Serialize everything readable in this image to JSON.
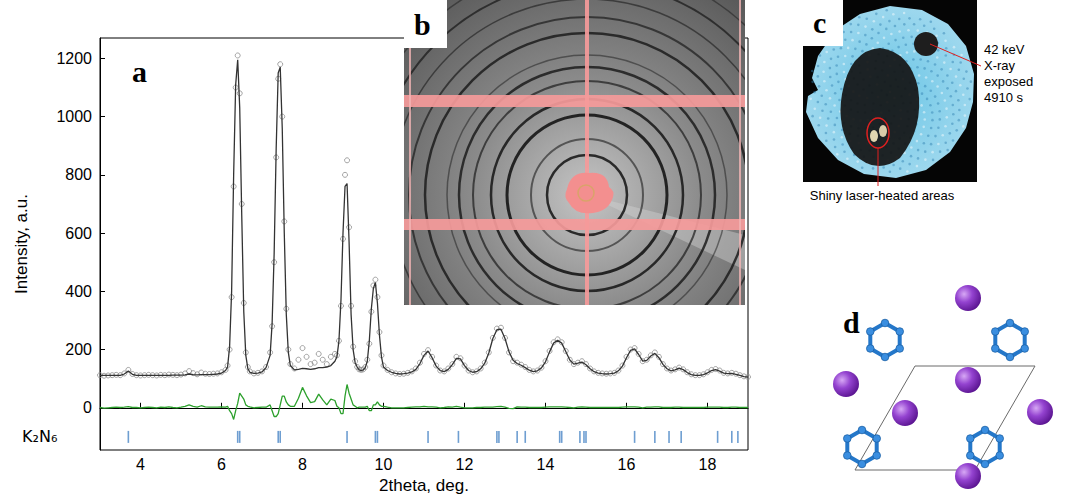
{
  "chart_data": {
    "type": "line",
    "letter": "a",
    "x_label": "2theta, deg.",
    "y_label": "Intensity, a.u.",
    "xlim": [
      3,
      19
    ],
    "xticks": [
      4,
      6,
      8,
      10,
      12,
      14,
      16,
      18
    ],
    "ylim": [
      -145,
      1270
    ],
    "yticks": [
      0,
      200,
      400,
      600,
      800,
      1000,
      1200
    ],
    "grid": false,
    "x": [
      3,
      3.1,
      3.2,
      3.3,
      3.4,
      3.5,
      3.6,
      3.7,
      3.8,
      3.9,
      4,
      4.1,
      4.2,
      4.3,
      4.4,
      4.5,
      4.6,
      4.7,
      4.8,
      4.9,
      5,
      5.1,
      5.2,
      5.3,
      5.4,
      5.5,
      5.6,
      5.7,
      5.8,
      5.9,
      6,
      6.1,
      6.15,
      6.2,
      6.25,
      6.3,
      6.35,
      6.4,
      6.45,
      6.5,
      6.55,
      6.6,
      6.65,
      6.7,
      6.8,
      6.9,
      7,
      7.1,
      7.2,
      7.25,
      7.3,
      7.35,
      7.4,
      7.45,
      7.5,
      7.55,
      7.6,
      7.65,
      7.7,
      7.8,
      7.9,
      8,
      8.1,
      8.2,
      8.3,
      8.4,
      8.5,
      8.6,
      8.7,
      8.8,
      8.85,
      8.9,
      8.95,
      9,
      9.05,
      9.1,
      9.15,
      9.2,
      9.25,
      9.3,
      9.35,
      9.4,
      9.45,
      9.5,
      9.55,
      9.6,
      9.65,
      9.7,
      9.75,
      9.8,
      9.85,
      9.9,
      9.95,
      10,
      10.1,
      10.2,
      10.3,
      10.4,
      10.5,
      10.6,
      10.7,
      10.8,
      10.9,
      11,
      11.1,
      11.2,
      11.3,
      11.4,
      11.5,
      11.6,
      11.7,
      11.8,
      11.9,
      12,
      12.1,
      12.2,
      12.3,
      12.4,
      12.5,
      12.6,
      12.7,
      12.8,
      12.9,
      13,
      13.1,
      13.2,
      13.3,
      13.4,
      13.5,
      13.6,
      13.7,
      13.8,
      13.9,
      14,
      14.1,
      14.2,
      14.3,
      14.4,
      14.5,
      14.6,
      14.7,
      14.8,
      14.9,
      15,
      15.1,
      15.2,
      15.3,
      15.4,
      15.5,
      15.6,
      15.7,
      15.8,
      15.9,
      16,
      16.1,
      16.2,
      16.3,
      16.4,
      16.5,
      16.6,
      16.7,
      16.8,
      16.9,
      17,
      17.1,
      17.2,
      17.3,
      17.4,
      17.5,
      17.6,
      17.7,
      17.8,
      17.9,
      18,
      18.1,
      18.2,
      18.3,
      18.4,
      18.5,
      18.6,
      18.7,
      18.8,
      18.9,
      19
    ],
    "series": [
      {
        "type": "scatter",
        "marker": "open_circle",
        "color": "#8c8c8c",
        "values": [
          112,
          110,
          111,
          112,
          113,
          112,
          118,
          130,
          116,
          112,
          111,
          112,
          113,
          112,
          111,
          113,
          112,
          114,
          113,
          112,
          114,
          118,
          126,
          119,
          115,
          121,
          117,
          116,
          117,
          118,
          122,
          130,
          145,
          200,
          380,
          760,
          1100,
          1210,
          1080,
          700,
          360,
          190,
          140,
          125,
          118,
          120,
          125,
          140,
          190,
          280,
          500,
          860,
          1130,
          1180,
          1000,
          640,
          340,
          200,
          150,
          135,
          165,
          205,
          175,
          150,
          155,
          185,
          165,
          150,
          175,
          185,
          180,
          230,
          350,
          580,
          800,
          850,
          620,
          350,
          210,
          160,
          140,
          132,
          130,
          132,
          140,
          165,
          220,
          330,
          420,
          440,
          380,
          260,
          180,
          145,
          130,
          122,
          118,
          116,
          117,
          120,
          125,
          135,
          155,
          185,
          198,
          175,
          145,
          128,
          125,
          135,
          150,
          175,
          170,
          145,
          128,
          122,
          125,
          135,
          155,
          190,
          240,
          272,
          275,
          240,
          190,
          160,
          155,
          148,
          140,
          130,
          125,
          128,
          138,
          160,
          195,
          225,
          235,
          225,
          195,
          165,
          150,
          155,
          160,
          150,
          135,
          125,
          120,
          118,
          117,
          118,
          120,
          128,
          145,
          175,
          200,
          205,
          185,
          160,
          165,
          180,
          190,
          175,
          150,
          135,
          128,
          132,
          138,
          132,
          122,
          115,
          112,
          112,
          115,
          122,
          130,
          133,
          128,
          120,
          118,
          120,
          117,
          112,
          108,
          106
        ]
      },
      {
        "type": "line",
        "line_style": "solid",
        "color": "#333333",
        "values": [
          111,
          111,
          111,
          111,
          111,
          111,
          116,
          126,
          115,
          111,
          111,
          111,
          111,
          111,
          111,
          111,
          111,
          111,
          112,
          112,
          112,
          113,
          116,
          114,
          113,
          114,
          114,
          114,
          115,
          116,
          119,
          128,
          140,
          210,
          400,
          800,
          1110,
          1195,
          1030,
          660,
          330,
          180,
          135,
          122,
          118,
          119,
          123,
          138,
          180,
          290,
          530,
          890,
          1150,
          1170,
          960,
          600,
          320,
          190,
          145,
          130,
          132,
          135,
          134,
          132,
          134,
          138,
          138,
          140,
          145,
          160,
          175,
          230,
          370,
          600,
          760,
          770,
          570,
          320,
          200,
          155,
          140,
          130,
          128,
          130,
          138,
          160,
          230,
          340,
          410,
          430,
          360,
          250,
          175,
          140,
          128,
          122,
          118,
          116,
          117,
          119,
          123,
          132,
          152,
          180,
          195,
          172,
          143,
          128,
          124,
          132,
          148,
          170,
          168,
          145,
          128,
          122,
          124,
          134,
          153,
          188,
          238,
          268,
          270,
          238,
          192,
          163,
          152,
          146,
          138,
          129,
          124,
          127,
          137,
          158,
          192,
          222,
          232,
          222,
          193,
          164,
          150,
          153,
          157,
          148,
          134,
          124,
          119,
          117,
          116,
          117,
          119,
          127,
          143,
          172,
          197,
          202,
          183,
          160,
          163,
          178,
          187,
          172,
          149,
          134,
          127,
          130,
          136,
          131,
          121,
          114,
          111,
          111,
          114,
          120,
          128,
          131,
          126,
          119,
          117,
          118,
          115,
          111,
          107,
          105
        ]
      },
      {
        "type": "line",
        "line_style": "solid",
        "color": "#2ca02c",
        "values": [
          1,
          -1,
          0,
          1,
          2,
          1,
          2,
          4,
          1,
          1,
          0,
          1,
          2,
          1,
          0,
          2,
          1,
          3,
          1,
          0,
          2,
          5,
          10,
          5,
          2,
          7,
          3,
          2,
          2,
          2,
          3,
          2,
          5,
          -10,
          -20,
          -40,
          -10,
          15,
          50,
          40,
          30,
          10,
          5,
          3,
          0,
          1,
          2,
          2,
          10,
          -10,
          -30,
          -30,
          -20,
          10,
          40,
          40,
          20,
          10,
          5,
          5,
          33,
          70,
          41,
          18,
          21,
          47,
          27,
          10,
          30,
          25,
          5,
          0,
          -20,
          -20,
          40,
          80,
          50,
          30,
          10,
          5,
          0,
          2,
          2,
          2,
          2,
          5,
          -10,
          -10,
          10,
          10,
          20,
          10,
          5,
          5,
          2,
          0,
          0,
          0,
          0,
          1,
          2,
          3,
          3,
          5,
          3,
          3,
          2,
          0,
          1,
          3,
          2,
          5,
          2,
          0,
          0,
          0,
          1,
          1,
          2,
          2,
          2,
          4,
          5,
          2,
          -2,
          -3,
          3,
          2,
          2,
          1,
          1,
          1,
          1,
          2,
          3,
          3,
          3,
          3,
          2,
          1,
          0,
          2,
          3,
          2,
          1,
          1,
          1,
          1,
          1,
          1,
          1,
          1,
          2,
          3,
          3,
          3,
          2,
          0,
          2,
          2,
          3,
          3,
          1,
          1,
          1,
          2,
          2,
          1,
          1,
          1,
          1,
          1,
          1,
          2,
          2,
          2,
          2,
          1,
          1,
          2,
          2,
          1,
          1,
          1
        ]
      },
      {
        "name": "K₂N₆",
        "type": "reflections",
        "marker": "vline",
        "color": "#4a86c5",
        "y": -100,
        "x": [
          3.7,
          6.4,
          6.45,
          7.4,
          7.45,
          9.1,
          9.8,
          9.85,
          11.1,
          11.85,
          12.8,
          12.85,
          13.3,
          13.5,
          14.35,
          14.4,
          14.85,
          14.95,
          15.0,
          16.2,
          16.7,
          17.05,
          17.35,
          18.25,
          18.6,
          18.75
        ]
      }
    ]
  },
  "panels": [
    {
      "letter": "b"
    },
    {
      "letter": "c",
      "annotations": [
        {
          "lines": [
            "42 keV",
            "X-ray",
            "exposed",
            "4910 s"
          ]
        },
        {
          "lines": [
            "Shiny laser-heated areas"
          ]
        }
      ]
    },
    {
      "letter": "d"
    }
  ]
}
